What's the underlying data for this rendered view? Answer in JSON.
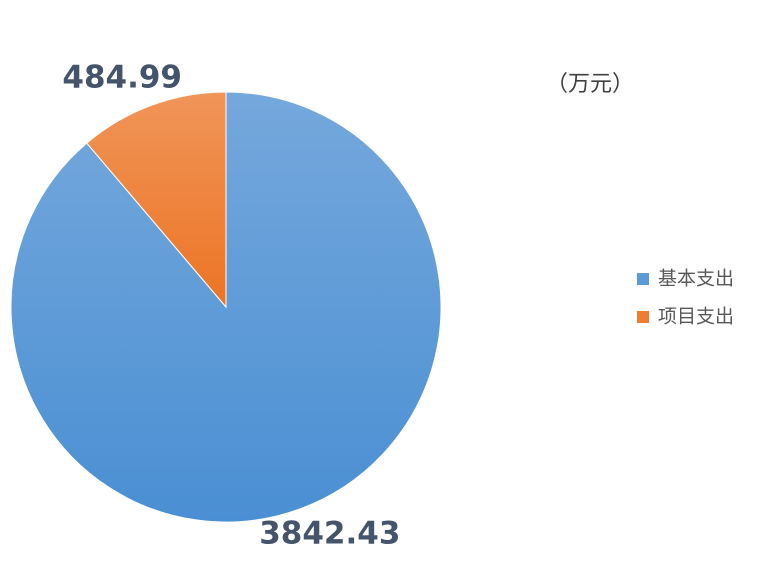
{
  "chart_data": {
    "type": "pie",
    "title": "（万元）",
    "categories": [
      "基本支出",
      "项目支出"
    ],
    "values": [
      3842.43,
      484.99
    ],
    "colors": [
      "#5b9bd5",
      "#ed7d31"
    ],
    "legend": "right"
  }
}
